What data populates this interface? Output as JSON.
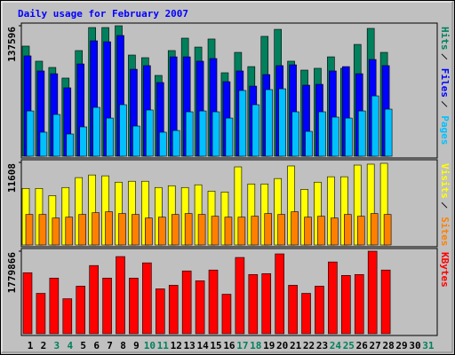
{
  "chart_data": {
    "type": "bar",
    "title": "Daily usage for February 2007",
    "categories": [
      1,
      2,
      3,
      4,
      5,
      6,
      7,
      8,
      9,
      10,
      11,
      12,
      13,
      14,
      15,
      16,
      17,
      18,
      19,
      20,
      21,
      22,
      23,
      24,
      25,
      26,
      27,
      28,
      29,
      30,
      31
    ],
    "category_colors": [
      "#000000",
      "#000000",
      "#00805c",
      "#00805c",
      "#000000",
      "#000000",
      "#000000",
      "#000000",
      "#000000",
      "#00805c",
      "#00805c",
      "#000000",
      "#000000",
      "#000000",
      "#000000",
      "#000000",
      "#00805c",
      "#00805c",
      "#000000",
      "#000000",
      "#000000",
      "#000000",
      "#000000",
      "#00805c",
      "#00805c",
      "#000000",
      "#000000",
      "#000000",
      "#000000",
      "#000000",
      "#00805c"
    ],
    "panels": [
      {
        "ylim": [
          0,
          137596
        ],
        "yticks": [
          137596
        ],
        "series": [
          {
            "name": "Hits",
            "color": "#00805c",
            "values": [
              116100,
              100200,
              93600,
              82400,
              111400,
              135700,
              135700,
              137596,
              106700,
              103900,
              85200,
              111400,
              124500,
              115100,
              123600,
              88000,
              109500,
              94500,
              126400,
              133800,
              100200,
              90800,
              92700,
              104800,
              92700,
              117900,
              134800,
              109500,
              null,
              null,
              null
            ]
          },
          {
            "name": "Files",
            "color": "#0000ff",
            "values": [
              105800,
              89900,
              87000,
              72100,
              97300,
              121700,
              120700,
              127300,
              91700,
              95500,
              77700,
              104800,
              104800,
              100200,
              103000,
              78600,
              89900,
              73900,
              86100,
              95500,
              96400,
              74900,
              75800,
              89900,
              94500,
              87000,
              102000,
              95500,
              null,
              null,
              null
            ]
          },
          {
            "name": "Pages",
            "color": "#00c0ff",
            "values": [
              47700,
              25300,
              44000,
              23400,
              30900,
              51500,
              40200,
              54300,
              31800,
              48700,
              25300,
              27100,
              46800,
              47700,
              46800,
              40200,
              69300,
              54300,
              70200,
              71100,
              46800,
              26200,
              46800,
              41200,
              40200,
              47700,
              63600,
              49600,
              null,
              null,
              null
            ]
          }
        ]
      },
      {
        "ylim": [
          0,
          11608
        ],
        "yticks": [
          11608
        ],
        "series": [
          {
            "name": "Visits",
            "color": "#ffff00",
            "values": [
              7950,
              7950,
              6940,
              8080,
              9470,
              9840,
              9720,
              8830,
              8960,
              8960,
              8080,
              8330,
              8080,
              8460,
              7570,
              7450,
              10980,
              8580,
              8580,
              9340,
              11110,
              7820,
              8830,
              9590,
              9590,
              11230,
              11360,
              11480,
              null,
              null,
              null
            ]
          },
          {
            "name": "Sites",
            "color": "#ff8000",
            "values": [
              4290,
              4290,
              3790,
              3910,
              4290,
              4540,
              4670,
              4420,
              4290,
              3790,
              3910,
              4290,
              4420,
              4290,
              4040,
              3910,
              3910,
              4040,
              4420,
              4290,
              4670,
              3910,
              4040,
              3790,
              4290,
              4040,
              4420,
              4290,
              null,
              null,
              null
            ]
          }
        ]
      },
      {
        "ylim": [
          0,
          1779866
        ],
        "yticks": [
          1779866
        ],
        "series": [
          {
            "name": "KBytes",
            "color": "#ff0000",
            "values": [
              1315500,
              870600,
              1199500,
              754500,
              1025300,
              1470300,
              1199500,
              1663800,
              1199500,
              1528300,
              967300,
              1044700,
              1354200,
              1141400,
              1373600,
              851200,
              1644400,
              1276800,
              1296200,
              1721800,
              1044700,
              870600,
              1025300,
              1547700,
              1257500,
              1276800,
              1779866,
              1373600,
              null,
              null,
              null
            ]
          }
        ]
      }
    ]
  }
}
